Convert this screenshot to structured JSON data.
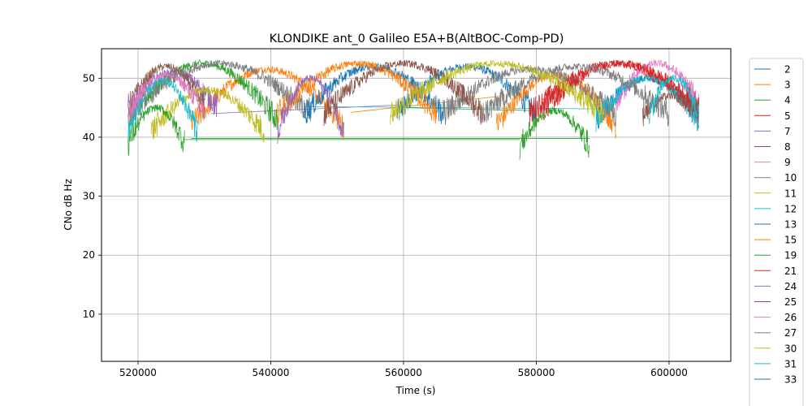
{
  "chart_data": {
    "type": "line",
    "title": "KLONDIKE ant_0 Galileo E5A+B(AltBOC-Comp-PD)",
    "xlabel": "Time (s)",
    "ylabel": "CNo dB Hz",
    "xlim": [
      514500,
      609300
    ],
    "ylim": [
      2,
      55
    ],
    "xticks": [
      520000,
      540000,
      560000,
      580000,
      600000
    ],
    "xtick_labels": [
      "520000",
      "540000",
      "560000",
      "580000",
      "600000"
    ],
    "yticks": [
      10,
      20,
      30,
      40,
      50
    ],
    "ytick_labels": [
      "10",
      "20",
      "30",
      "40",
      "50"
    ],
    "grid": true,
    "legend_position": "outside-right",
    "series": [
      {
        "name": "2",
        "color": "#1f77b4",
        "arcs": [
          [
            559000,
            580000,
            44,
            52
          ],
          [
            589000,
            604500,
            43,
            50
          ]
        ]
      },
      {
        "name": "3",
        "color": "#ff7f0e",
        "arcs": [
          [
            528000,
            551000,
            42,
            51.5
          ],
          [
            574000,
            592000,
            42,
            50.5
          ]
        ]
      },
      {
        "name": "4",
        "color": "#2ca02c",
        "arcs": [
          [
            518500,
            541000,
            43,
            52.5
          ]
        ]
      },
      {
        "name": "5",
        "color": "#d62728",
        "arcs": [
          [
            579000,
            604500,
            44,
            52.5
          ]
        ]
      },
      {
        "name": "7",
        "color": "#9467bd",
        "arcs": [
          [
            518500,
            532000,
            45,
            51
          ]
        ]
      },
      {
        "name": "8",
        "color": "#8c564b",
        "arcs": [
          [
            518500,
            530000,
            45,
            52
          ]
        ]
      },
      {
        "name": "9",
        "color": "#e377c2",
        "arcs": [
          [
            592000,
            604500,
            46,
            52.5
          ]
        ]
      },
      {
        "name": "10",
        "color": "#7f7f7f",
        "arcs": [
          [
            518500,
            546000,
            44,
            52.5
          ],
          [
            566000,
            592000,
            44,
            51.5
          ]
        ]
      },
      {
        "name": "11",
        "color": "#bcbd22",
        "arcs": [
          [
            522000,
            539000,
            41,
            48
          ]
        ]
      },
      {
        "name": "12",
        "color": "#17becf",
        "arcs": [
          [
            589000,
            604500,
            43,
            50
          ]
        ]
      },
      {
        "name": "13",
        "color": "#1f77b4",
        "arcs": [
          [
            545000,
            566000,
            44,
            52
          ]
        ]
      },
      {
        "name": "15",
        "color": "#ff7f0e",
        "arcs": [
          [
            541000,
            565000,
            44,
            52.5
          ]
        ]
      },
      {
        "name": "19",
        "color": "#2ca02c",
        "arcs": [
          [
            518500,
            527000,
            39,
            45
          ],
          [
            577500,
            588000,
            38.5,
            44.5
          ]
        ]
      },
      {
        "name": "21",
        "color": "#d62728",
        "arcs": [
          [
            581000,
            604500,
            45,
            52.5
          ]
        ]
      },
      {
        "name": "24",
        "color": "#9467bd",
        "arcs": [
          [
            541000,
            551000,
            41,
            50
          ]
        ]
      },
      {
        "name": "25",
        "color": "#8c564b",
        "arcs": [
          [
            548000,
            572000,
            44,
            52.5
          ],
          [
            596000,
            604500,
            44,
            47
          ]
        ]
      },
      {
        "name": "26",
        "color": "#e377c2",
        "arcs": [
          [
            518500,
            530000,
            44,
            50.5
          ]
        ]
      },
      {
        "name": "27",
        "color": "#7f7f7f",
        "arcs": [
          [
            572000,
            600000,
            44,
            52
          ]
        ]
      },
      {
        "name": "30",
        "color": "#bcbd22",
        "arcs": [
          [
            558000,
            590000,
            44,
            52.5
          ]
        ]
      },
      {
        "name": "31",
        "color": "#17becf",
        "arcs": [
          [
            518500,
            529000,
            41,
            49.5
          ],
          [
            597000,
            604500,
            44,
            50
          ]
        ]
      },
      {
        "name": "33",
        "color": "#1f77b4",
        "arcs": []
      }
    ],
    "connector_lines": [
      {
        "color": "#2ca02c",
        "y_start": 39.6,
        "y_end": 39.6
      },
      {
        "color": "#2ca02c",
        "y_start": 39.8,
        "y_end": 39.8
      },
      {
        "color": "#9467bd",
        "y_start": 44.0,
        "y_end": 45.5
      },
      {
        "color": "#17becf",
        "y_start": 45.2,
        "y_end": 44.8
      },
      {
        "color": "#ff7f0e",
        "y_start": 44.2,
        "y_end": 47.0
      },
      {
        "color": "#2ca02c",
        "y_start": 45.0,
        "y_end": 44.5
      }
    ]
  }
}
